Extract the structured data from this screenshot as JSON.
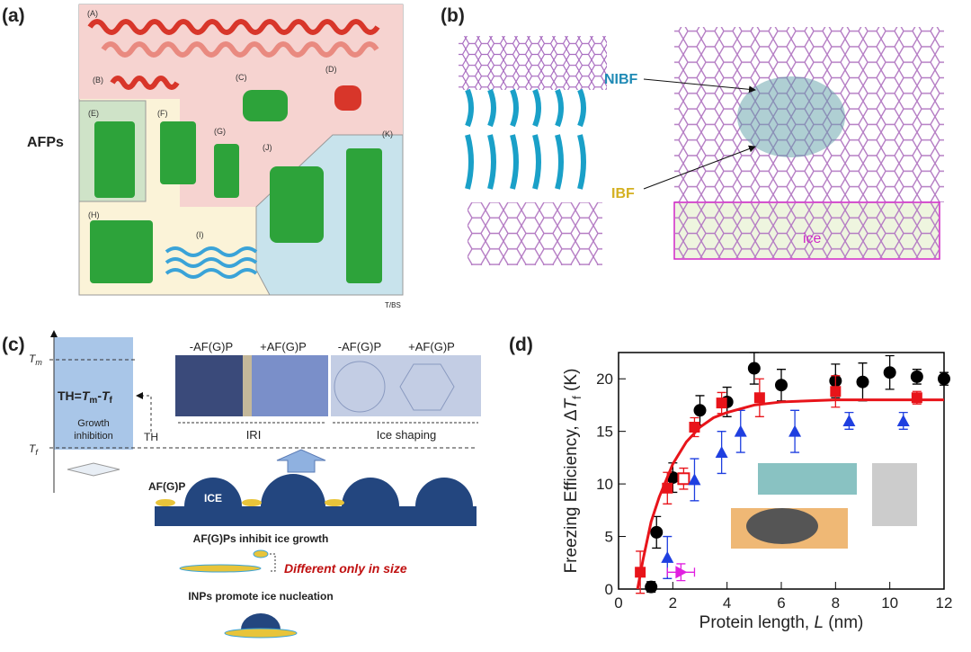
{
  "panel_a": {
    "label": "(a)",
    "side_label": "AFPs",
    "structures": [
      "(A)",
      "(B)",
      "(C)",
      "(D)",
      "(E)",
      "(F)",
      "(G)",
      "(H)",
      "(I)",
      "(J)",
      "(K)"
    ],
    "credit": "T/BS"
  },
  "panel_b": {
    "label": "(b)",
    "nibf": "NIBF",
    "ibf": "IBF",
    "ice": "ice"
  },
  "panel_c": {
    "label": "(c)",
    "tm": [
      "T",
      "m"
    ],
    "tf": [
      "T",
      "f"
    ],
    "th_eq": [
      "TH=",
      "T",
      "m",
      "-",
      "T",
      "f"
    ],
    "growth": [
      "Growth",
      "inhibition"
    ],
    "th": "TH",
    "images": [
      "-AF(G)P",
      "+AF(G)P",
      "-AF(G)P",
      "+AF(G)P"
    ],
    "iri": "IRI",
    "shaping": "Ice shaping",
    "afgp": "AF(G)P",
    "ice": "ICE",
    "inhibit": "AF(G)Ps inhibit ice growth",
    "size": "Different only in size",
    "inps": "INPs promote ice nucleation"
  },
  "panel_d": {
    "label": "(d)"
  },
  "chart_data": {
    "type": "scatter",
    "xlabel": [
      "Protein length, ",
      "L",
      " (nm)"
    ],
    "ylabel": [
      "Freezing Efficiency, Δ",
      "T",
      "f",
      " (K)"
    ],
    "xlim": [
      0,
      12
    ],
    "xticks": [
      0,
      2,
      4,
      6,
      8,
      10,
      12
    ],
    "ylim": [
      0,
      22.5
    ],
    "yticks": [
      0,
      5,
      10,
      15,
      20
    ],
    "series": [
      {
        "marker": "circle",
        "color": "#000000",
        "x": [
          1.2,
          1.4,
          2,
          3,
          4,
          5,
          6,
          8,
          9,
          10,
          11,
          12
        ],
        "values": [
          0.2,
          5.4,
          10.6,
          17,
          17.8,
          21,
          19.4,
          19.8,
          19.7,
          20.6,
          20.2,
          20
        ],
        "errors": [
          0.5,
          1.5,
          1.4,
          1.4,
          1.4,
          1.5,
          1.5,
          1.6,
          1.8,
          1.6,
          0.7,
          0.6
        ]
      },
      {
        "marker": "square",
        "color": "#e8141a",
        "x": [
          0.8,
          1.8,
          2.8,
          3.8,
          5.2,
          8,
          11
        ],
        "values": [
          1.6,
          9.6,
          15.4,
          17.7,
          18.2,
          18.8,
          18.2
        ],
        "errors": [
          2,
          1.5,
          0.9,
          1,
          1.8,
          1.5,
          0.6
        ]
      },
      {
        "marker": "square-open",
        "color": "#e8141a",
        "x": [
          2.4
        ],
        "values": [
          10.5
        ],
        "errors": [
          1
        ]
      },
      {
        "marker": "triangle",
        "color": "#1f3fe0",
        "x": [
          1.8,
          2.8,
          3.8,
          4.5,
          6.5,
          8.5,
          10.5
        ],
        "values": [
          3,
          10.4,
          13,
          15,
          15,
          16,
          16
        ],
        "errors": [
          2,
          2,
          2,
          2,
          2,
          0.8,
          0.8
        ]
      },
      {
        "marker": "triangle-right",
        "color": "#e020e0",
        "x": [
          2.3
        ],
        "values": [
          1.6
        ],
        "errors": [
          0.8
        ],
        "xerrors": [
          0.5
        ]
      },
      {
        "marker": "line",
        "color": "#e8141a",
        "x": [
          0.7,
          0.9,
          1.2,
          1.5,
          2,
          2.5,
          3,
          3.5,
          4,
          5,
          6,
          8,
          10,
          12
        ],
        "values": [
          0,
          2.77,
          6.4,
          8.76,
          11.9,
          14,
          15.4,
          16.3,
          16.8,
          17.5,
          17.8,
          18,
          18,
          18
        ]
      }
    ]
  }
}
